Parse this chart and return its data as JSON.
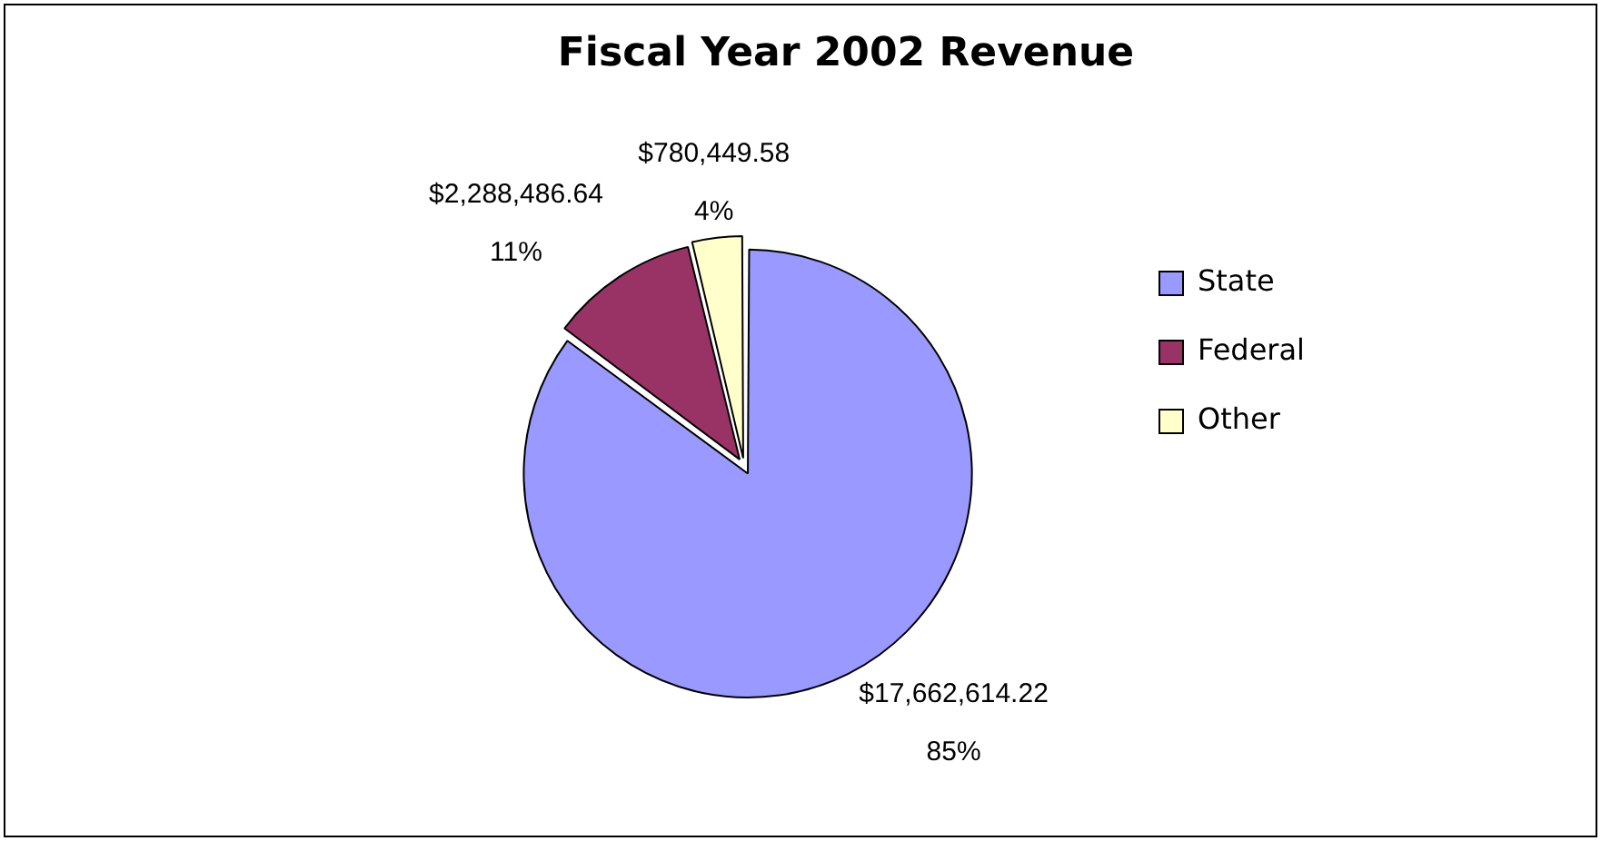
{
  "chart_data": {
    "type": "pie",
    "title": "Fiscal Year 2002 Revenue",
    "categories": [
      "State",
      "Federal",
      "Other"
    ],
    "values": [
      17662614.22,
      2288486.64,
      780449.58
    ],
    "colors": [
      "#9999ff",
      "#993366",
      "#ffffcc"
    ],
    "value_labels": [
      "$17,662,614.22\n85%",
      "$2,288,486.64\n11%",
      "$780,449.58\n4%"
    ],
    "legend": "right"
  }
}
